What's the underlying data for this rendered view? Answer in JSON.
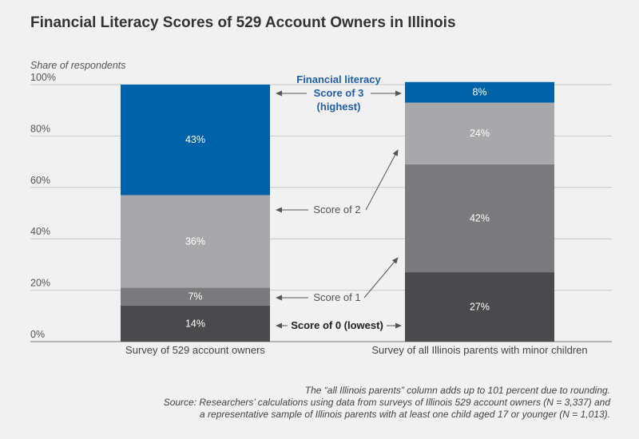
{
  "chart_data": {
    "type": "bar",
    "stacked": true,
    "title": "Financial Literacy Scores of 529 Account Owners in Illinois",
    "ylabel": "Share of respondents",
    "ylim": [
      0,
      100
    ],
    "y_ticks": [
      "0%",
      "20%",
      "40%",
      "60%",
      "80%",
      "100%"
    ],
    "y_tick_values": [
      0,
      20,
      40,
      60,
      80,
      100
    ],
    "grid": true,
    "categories": [
      "Survey of 529 account owners",
      "Survey of all Illinois parents with minor children"
    ],
    "series": [
      {
        "name": "Score of 0 (lowest)",
        "values": [
          14,
          27
        ],
        "labels": [
          "14%",
          "27%"
        ],
        "color": "#4a4a4d"
      },
      {
        "name": "Score of 1",
        "values": [
          7,
          42
        ],
        "labels": [
          "7%",
          "42%"
        ],
        "color": "#7a7a7d"
      },
      {
        "name": "Score of 2",
        "values": [
          36,
          24
        ],
        "labels": [
          "36%",
          "24%"
        ],
        "color": "#a8a8ab"
      },
      {
        "name": "Score of 3",
        "values": [
          43,
          8
        ],
        "labels": [
          "43%",
          "8%"
        ],
        "color": "#0062a8"
      }
    ],
    "annotations": {
      "header": "Financial literacy",
      "score3_line1": "Score of 3",
      "score3_line2": "(highest)",
      "score2": "Score of 2",
      "score1": "Score of 1",
      "score0": "Score of 0 (lowest)"
    }
  },
  "notes": {
    "line1": "The “all Illinois parents” column adds up to 101 percent due to rounding.",
    "line2": "Source: Researchers’ calculations using data from surveys of Illinois 529 account owners (N = 3,337) and",
    "line3": "a representative sample of Illinois parents with at least one child aged 17 or younger (N = 1,013)."
  }
}
